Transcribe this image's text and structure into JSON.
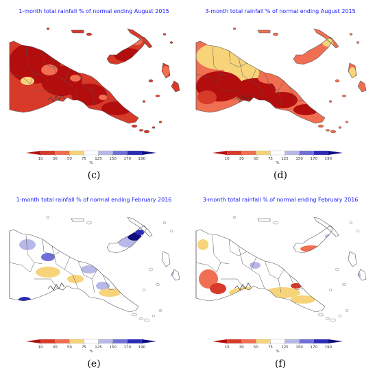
{
  "colors": {
    "10": "#b30d0d",
    "30": "#d83a2a",
    "50": "#f06e51",
    "75": "#f7d47a",
    "125": "#ffffff",
    "150": "#b7b8e8",
    "170": "#6f6fd8",
    "190": "#2b2bb8",
    "190+": "#0c0c80",
    "sea": "#ffffff",
    "border": "#555555"
  },
  "colorbar": {
    "ticks": [
      "10",
      "30",
      "50",
      "75",
      "125",
      "150",
      "170",
      "190"
    ],
    "unit": "%"
  },
  "panels": [
    {
      "title": "1-month total rainfall % of normal ending August 2015",
      "label": "(c)",
      "dominant": "30"
    },
    {
      "title": "3-month total rainfall % of normal ending August 2015",
      "label": "(d)",
      "dominant": "50"
    },
    {
      "title": "1-month total rainfall % of normal ending February 2016",
      "label": "(e)",
      "dominant": "125"
    },
    {
      "title": "3-month total rainfall % of normal ending February 2016",
      "label": "(f)",
      "dominant": "125"
    }
  ]
}
